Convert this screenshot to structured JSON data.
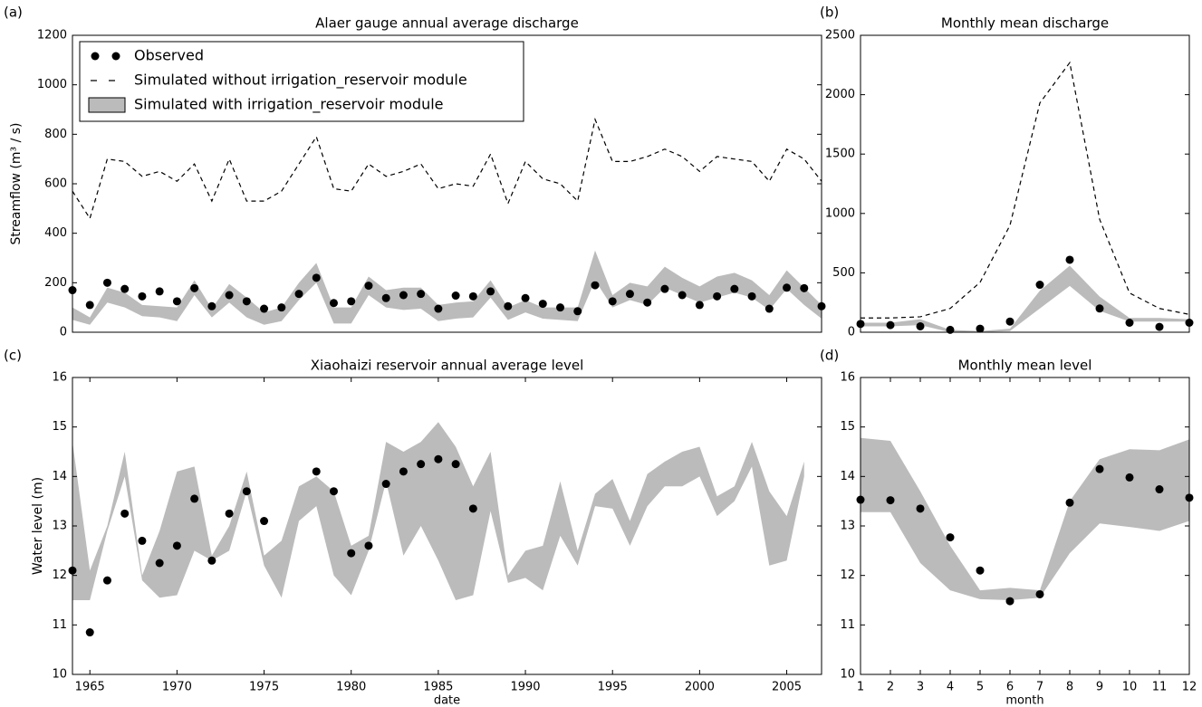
{
  "chart_data": [
    {
      "type": "line",
      "panel_label": "(a)",
      "title": "Alaer gauge annual average discharge",
      "ylabel": "Streamflow (m³ / s)",
      "x": [
        1964,
        1965,
        1966,
        1967,
        1968,
        1969,
        1970,
        1971,
        1972,
        1973,
        1974,
        1975,
        1976,
        1977,
        1978,
        1979,
        1980,
        1981,
        1982,
        1983,
        1984,
        1985,
        1986,
        1987,
        1988,
        1989,
        1990,
        1991,
        1992,
        1993,
        1994,
        1995,
        1996,
        1997,
        1998,
        1999,
        2000,
        2001,
        2002,
        2003,
        2004,
        2005,
        2006,
        2007
      ],
      "xlim": [
        1964,
        2007
      ],
      "ylim": [
        0,
        1200
      ],
      "yticks": [
        0,
        200,
        400,
        600,
        800,
        1000,
        1200
      ],
      "legend": "upper left",
      "series": [
        {
          "name": "Observed",
          "style": "markers",
          "color": "#000000",
          "values": [
            170,
            110,
            200,
            175,
            145,
            165,
            125,
            178,
            105,
            150,
            125,
            95,
            100,
            155,
            220,
            118,
            125,
            188,
            138,
            150,
            155,
            95,
            148,
            145,
            165,
            105,
            138,
            115,
            100,
            85,
            190,
            125,
            155,
            120,
            175,
            150,
            110,
            145,
            175,
            145,
            95,
            180,
            178,
            105
          ]
        },
        {
          "name": "Simulated without irrigation_reservoir module",
          "style": "dashed",
          "color": "#000000",
          "values": [
            570,
            460,
            700,
            690,
            630,
            650,
            610,
            680,
            530,
            700,
            530,
            530,
            570,
            680,
            790,
            580,
            570,
            680,
            630,
            650,
            680,
            580,
            600,
            590,
            720,
            520,
            690,
            620,
            600,
            530,
            860,
            690,
            690,
            710,
            740,
            710,
            650,
            710,
            700,
            690,
            610,
            740,
            700,
            610
          ]
        },
        {
          "name": "Simulated with irrigation_reservoir module",
          "style": "band",
          "color": "#bbbbbb",
          "upper": [
            100,
            60,
            180,
            160,
            110,
            105,
            100,
            210,
            95,
            195,
            140,
            80,
            100,
            200,
            280,
            100,
            100,
            225,
            170,
            180,
            180,
            110,
            120,
            125,
            210,
            100,
            130,
            100,
            100,
            100,
            330,
            150,
            200,
            185,
            265,
            220,
            185,
            225,
            240,
            210,
            150,
            250,
            180,
            110
          ],
          "lower": [
            50,
            30,
            120,
            100,
            65,
            60,
            45,
            150,
            60,
            120,
            60,
            30,
            45,
            130,
            200,
            35,
            35,
            150,
            100,
            90,
            95,
            45,
            55,
            60,
            140,
            50,
            80,
            55,
            50,
            45,
            210,
            100,
            130,
            110,
            180,
            150,
            120,
            140,
            160,
            140,
            90,
            175,
            110,
            55
          ]
        }
      ]
    },
    {
      "type": "line",
      "panel_label": "(b)",
      "title": "Monthly mean discharge",
      "x": [
        1,
        2,
        3,
        4,
        5,
        6,
        7,
        8,
        9,
        10,
        11,
        12
      ],
      "xlim": [
        1,
        12
      ],
      "ylim": [
        0,
        2500
      ],
      "yticks": [
        0,
        500,
        1000,
        1500,
        2000,
        2500
      ],
      "series": [
        {
          "style": "markers",
          "color": "#000000",
          "values": [
            70,
            60,
            50,
            20,
            30,
            90,
            400,
            610,
            200,
            80,
            45,
            80
          ]
        },
        {
          "style": "dashed",
          "color": "#000000",
          "values": [
            120,
            120,
            130,
            200,
            420,
            900,
            1930,
            2270,
            950,
            330,
            200,
            150
          ]
        },
        {
          "style": "band",
          "color": "#bbbbbb",
          "upper": [
            80,
            80,
            110,
            20,
            10,
            30,
            350,
            560,
            300,
            120,
            120,
            110
          ],
          "lower": [
            50,
            50,
            60,
            0,
            0,
            10,
            200,
            390,
            180,
            90,
            90,
            90
          ]
        }
      ]
    },
    {
      "type": "line",
      "panel_label": "(c)",
      "title": "Xiaohaizi reservoir annual average level",
      "ylabel": "Water level (m)",
      "xlabel": "date",
      "x": [
        1964,
        1965,
        1966,
        1967,
        1968,
        1969,
        1970,
        1971,
        1972,
        1973,
        1974,
        1975,
        1976,
        1977,
        1978,
        1979,
        1980,
        1981,
        1982,
        1983,
        1984,
        1985,
        1986,
        1987,
        1988,
        1989,
        1990,
        1991,
        1992,
        1993,
        1994,
        1995,
        1996,
        1997,
        1998,
        1999,
        2000,
        2001,
        2002,
        2003,
        2004,
        2005,
        2006,
        2007
      ],
      "xlim": [
        1964,
        2007
      ],
      "xticks": [
        1965,
        1970,
        1975,
        1980,
        1985,
        1990,
        1995,
        2000,
        2005
      ],
      "ylim": [
        10,
        16
      ],
      "yticks": [
        10,
        11,
        12,
        13,
        14,
        15,
        16
      ],
      "series": [
        {
          "style": "markers",
          "color": "#000000",
          "values": [
            12.1,
            10.85,
            11.9,
            13.25,
            12.7,
            12.25,
            12.6,
            13.55,
            12.3,
            13.25,
            13.7,
            13.1,
            null,
            null,
            14.1,
            13.7,
            12.45,
            12.6,
            13.85,
            14.1,
            14.25,
            14.35,
            14.25,
            13.35,
            null,
            null,
            null,
            null,
            null,
            null,
            null,
            null,
            null,
            null,
            null,
            null,
            null,
            null,
            null,
            null,
            null,
            null,
            null,
            null
          ]
        },
        {
          "style": "band",
          "color": "#bbbbbb",
          "upper": [
            14.7,
            12.1,
            13.0,
            14.5,
            12.0,
            12.9,
            14.1,
            14.2,
            12.4,
            13.0,
            14.1,
            12.4,
            12.7,
            13.8,
            14.0,
            13.7,
            12.6,
            12.8,
            14.7,
            14.5,
            14.7,
            15.1,
            14.6,
            13.8,
            14.5,
            12.0,
            12.5,
            12.6,
            13.9,
            12.5,
            13.65,
            13.95,
            13.1,
            14.05,
            14.3,
            14.5,
            14.6,
            13.6,
            13.8,
            14.7,
            13.7,
            13.2,
            14.3,
            null
          ],
          "lower": [
            11.5,
            11.5,
            12.9,
            14.0,
            11.9,
            11.55,
            11.6,
            12.5,
            12.3,
            12.5,
            13.7,
            12.2,
            11.55,
            13.1,
            13.4,
            12.0,
            11.6,
            12.5,
            13.9,
            12.4,
            13.0,
            12.3,
            11.5,
            11.6,
            13.3,
            11.85,
            11.95,
            11.7,
            12.8,
            12.2,
            13.4,
            13.35,
            12.6,
            13.4,
            13.8,
            13.8,
            14.0,
            13.2,
            13.5,
            14.2,
            12.2,
            12.3,
            14.0,
            null
          ]
        }
      ]
    },
    {
      "type": "line",
      "panel_label": "(d)",
      "title": "Monthly mean level",
      "xlabel": "month",
      "x": [
        1,
        2,
        3,
        4,
        5,
        6,
        7,
        8,
        9,
        10,
        11,
        12
      ],
      "xlim": [
        1,
        12
      ],
      "xticks": [
        1,
        2,
        3,
        4,
        5,
        6,
        7,
        8,
        9,
        10,
        11,
        12
      ],
      "ylim": [
        10,
        16
      ],
      "yticks": [
        10,
        11,
        12,
        13,
        14,
        15,
        16
      ],
      "series": [
        {
          "style": "markers",
          "color": "#000000",
          "values": [
            13.53,
            13.52,
            13.35,
            12.77,
            12.1,
            11.48,
            11.62,
            13.47,
            14.15,
            13.98,
            13.74,
            13.57
          ]
        },
        {
          "style": "band",
          "color": "#bbbbbb",
          "upper": [
            14.78,
            14.72,
            13.7,
            12.6,
            11.7,
            11.75,
            11.7,
            13.5,
            14.35,
            14.55,
            14.53,
            14.75
          ],
          "lower": [
            13.28,
            13.28,
            12.25,
            11.7,
            11.52,
            11.5,
            11.55,
            12.45,
            13.05,
            12.98,
            12.9,
            13.1
          ]
        }
      ]
    }
  ]
}
